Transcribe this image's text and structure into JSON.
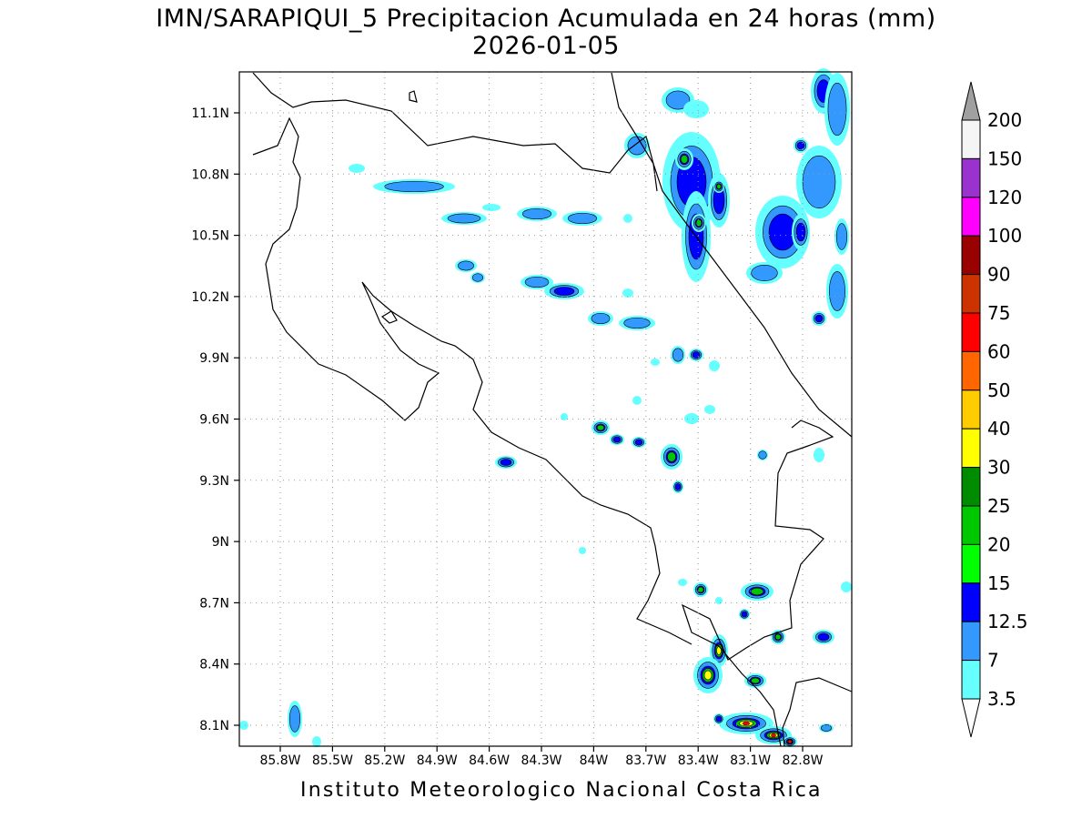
{
  "title": {
    "line1": "IMN/SARAPIQUI_5 Precipitacion Acumulada en 24 horas (mm)",
    "line2": "2026-01-05"
  },
  "credit": "Instituto Meteorologico Nacional Costa Rica",
  "map": {
    "lon_range": [
      -86.05,
      -82.55
    ],
    "lat_range": [
      8.0,
      11.3
    ],
    "lat_ticks": [
      "8.1N",
      "8.4N",
      "8.7N",
      "9N",
      "9.3N",
      "9.6N",
      "9.9N",
      "10.2N",
      "10.5N",
      "10.8N",
      "11.1N"
    ],
    "lon_ticks": [
      "85.8W",
      "85.5W",
      "85.2W",
      "84.9W",
      "84.6W",
      "84.3W",
      "84W",
      "83.7W",
      "83.4W",
      "83.1W",
      "82.8W"
    ],
    "grid": true
  },
  "colorbar": {
    "levels": [
      "200",
      "150",
      "120",
      "100",
      "90",
      "75",
      "60",
      "50",
      "40",
      "30",
      "25",
      "20",
      "15",
      "12.5",
      "7",
      "3.5"
    ],
    "colors": [
      "#a0a0a0",
      "#f5f5f5",
      "#9a32cd",
      "#ff00ff",
      "#990000",
      "#cc3300",
      "#ff0000",
      "#ff6600",
      "#ffcc00",
      "#ffff00",
      "#008c00",
      "#00c800",
      "#00ff00",
      "#0000ff",
      "#3399ff",
      "#66ffff",
      "#ffffff"
    ]
  }
}
